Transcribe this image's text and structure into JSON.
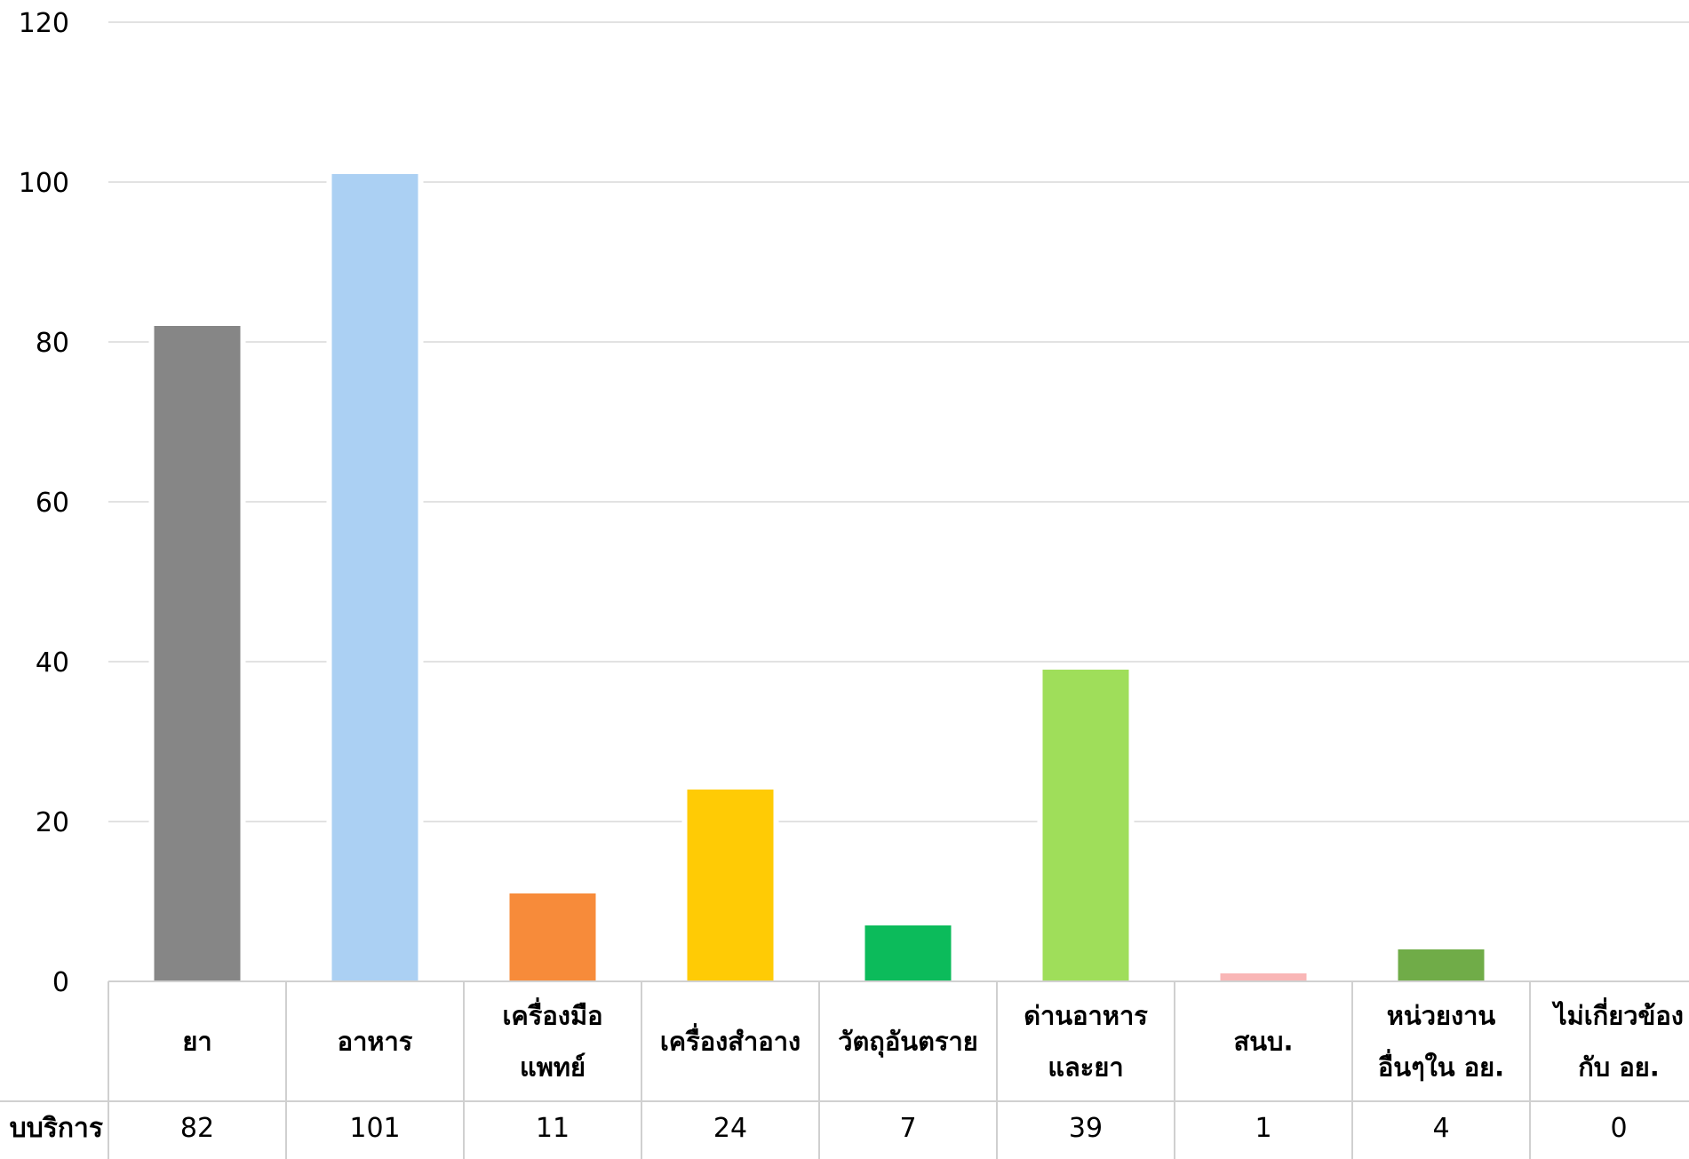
{
  "chart_data": {
    "type": "bar",
    "title": "",
    "xlabel": "",
    "ylabel": "",
    "ylim": [
      0,
      120
    ],
    "yticks": [
      0,
      20,
      40,
      60,
      80,
      100,
      120
    ],
    "grid": true,
    "legend": "none",
    "data_table": true,
    "row_label": "บบริการ",
    "categories": [
      [
        "ยา"
      ],
      [
        "อาหาร"
      ],
      [
        "เครื่องมือ",
        "แพทย์"
      ],
      [
        "เครื่องสำอาง"
      ],
      [
        "วัตถุอันตราย"
      ],
      [
        "ด่านอาหาร",
        "และยา"
      ],
      [
        "สนบ."
      ],
      [
        "หน่วยงาน",
        "อื่นๆใน อย."
      ],
      [
        "ไม่เกี่ยวข้อง",
        "กับ อย."
      ]
    ],
    "values": [
      82,
      101,
      11,
      24,
      7,
      39,
      1,
      4,
      0
    ],
    "colors": [
      "#868686",
      "#abd0f3",
      "#f78b3a",
      "#ffcb05",
      "#0cbb5b",
      "#9fde5a",
      "#f9b6b6",
      "#70ac48",
      "#999999"
    ]
  }
}
